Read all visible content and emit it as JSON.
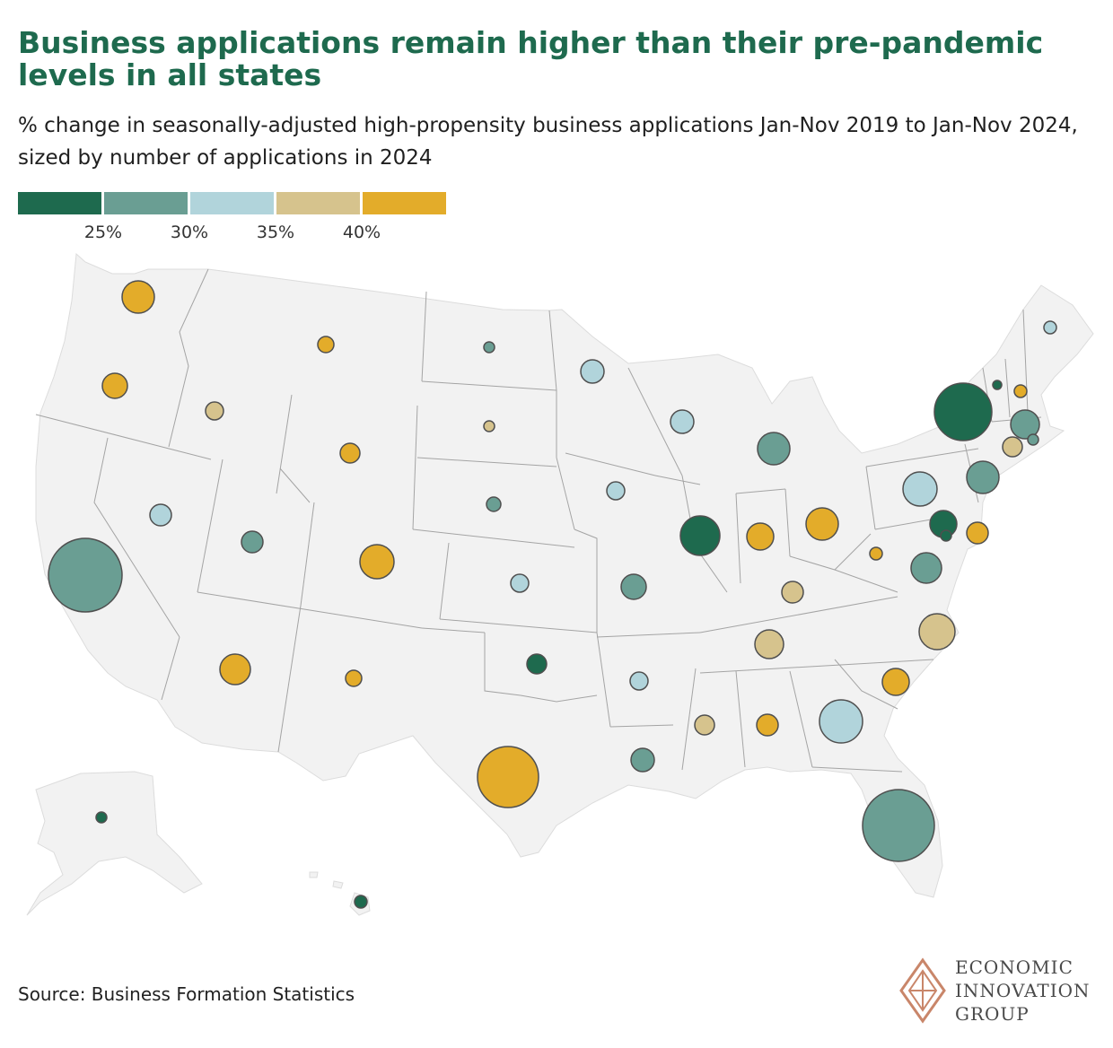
{
  "title": "Business applications remain higher than their pre-pandemic levels in all states",
  "subtitle": "% change in seasonally-adjusted high-propensity business applications Jan-Nov 2019 to Jan-Nov 2024, sized by number of applications in 2024",
  "source": "Source: Business Formation Statistics",
  "logo": {
    "lines": [
      "ECONOMIC",
      "INNOVATION",
      "GROUP"
    ]
  },
  "legend": {
    "colors": [
      "#1e6a4e",
      "#6a9e93",
      "#b1d4db",
      "#d6c38d",
      "#e3ac2a"
    ],
    "ticks": [
      "25%",
      "30%",
      "35%",
      "40%"
    ]
  },
  "colors": {
    "land": "#f2f2f2",
    "border": "#9a9a9a",
    "bubble_outline": "#4f4f4f"
  },
  "chart_data": {
    "type": "bubble-map",
    "title": "Business applications remain higher than their pre-pandemic levels in all states",
    "size_variable": "number of applications in 2024 (relative)",
    "color_variable": "% change 2019 to 2024 (binned)",
    "bins": [
      {
        "label": "below 25%",
        "color": "#1e6a4e"
      },
      {
        "label": "25% to 30%",
        "color": "#6a9e93"
      },
      {
        "label": "30% to 35%",
        "color": "#b1d4db"
      },
      {
        "label": "35% to 40%",
        "color": "#d6c38d"
      },
      {
        "label": "above 40%",
        "color": "#e3ac2a"
      }
    ],
    "states": [
      {
        "state": "WA",
        "bin": 4,
        "size": 18
      },
      {
        "state": "OR",
        "bin": 4,
        "size": 14
      },
      {
        "state": "ID",
        "bin": 3,
        "size": 10
      },
      {
        "state": "MT",
        "bin": 4,
        "size": 9
      },
      {
        "state": "WY",
        "bin": 4,
        "size": 11
      },
      {
        "state": "ND",
        "bin": 1,
        "size": 6
      },
      {
        "state": "SD",
        "bin": 3,
        "size": 6
      },
      {
        "state": "NE",
        "bin": 1,
        "size": 8
      },
      {
        "state": "MN",
        "bin": 2,
        "size": 13
      },
      {
        "state": "WI",
        "bin": 2,
        "size": 13
      },
      {
        "state": "MI",
        "bin": 1,
        "size": 18
      },
      {
        "state": "IA",
        "bin": 2,
        "size": 10
      },
      {
        "state": "IL",
        "bin": 0,
        "size": 22
      },
      {
        "state": "IN",
        "bin": 4,
        "size": 15
      },
      {
        "state": "OH",
        "bin": 4,
        "size": 18
      },
      {
        "state": "PA",
        "bin": 2,
        "size": 19
      },
      {
        "state": "NY",
        "bin": 0,
        "size": 32
      },
      {
        "state": "NJ",
        "bin": 1,
        "size": 18
      },
      {
        "state": "CA",
        "bin": 1,
        "size": 41
      },
      {
        "state": "NV",
        "bin": 2,
        "size": 12
      },
      {
        "state": "UT",
        "bin": 1,
        "size": 12
      },
      {
        "state": "CO",
        "bin": 4,
        "size": 19
      },
      {
        "state": "KS",
        "bin": 2,
        "size": 10
      },
      {
        "state": "MO",
        "bin": 1,
        "size": 14
      },
      {
        "state": "KY",
        "bin": 3,
        "size": 12
      },
      {
        "state": "WV",
        "bin": 4,
        "size": 7
      },
      {
        "state": "VA",
        "bin": 1,
        "size": 17
      },
      {
        "state": "MD",
        "bin": 0,
        "size": 15
      },
      {
        "state": "DE",
        "bin": 0,
        "size": 6
      },
      {
        "state": "DC",
        "bin": 4,
        "size": 12
      },
      {
        "state": "AZ",
        "bin": 4,
        "size": 17
      },
      {
        "state": "NM",
        "bin": 4,
        "size": 9
      },
      {
        "state": "OK",
        "bin": 0,
        "size": 11
      },
      {
        "state": "AR",
        "bin": 2,
        "size": 10
      },
      {
        "state": "TN",
        "bin": 3,
        "size": 16
      },
      {
        "state": "NC",
        "bin": 3,
        "size": 20
      },
      {
        "state": "SC",
        "bin": 4,
        "size": 15
      },
      {
        "state": "GA",
        "bin": 2,
        "size": 24
      },
      {
        "state": "AL",
        "bin": 4,
        "size": 12
      },
      {
        "state": "MS",
        "bin": 3,
        "size": 11
      },
      {
        "state": "LA",
        "bin": 1,
        "size": 13
      },
      {
        "state": "TX",
        "bin": 4,
        "size": 34
      },
      {
        "state": "FL",
        "bin": 1,
        "size": 40
      },
      {
        "state": "ME",
        "bin": 2,
        "size": 7
      },
      {
        "state": "VT",
        "bin": 0,
        "size": 5
      },
      {
        "state": "NH",
        "bin": 4,
        "size": 7
      },
      {
        "state": "MA",
        "bin": 1,
        "size": 16
      },
      {
        "state": "CT",
        "bin": 3,
        "size": 11
      },
      {
        "state": "RI",
        "bin": 1,
        "size": 6
      },
      {
        "state": "AK",
        "bin": 0,
        "size": 6
      },
      {
        "state": "HI",
        "bin": 0,
        "size": 7
      }
    ]
  }
}
